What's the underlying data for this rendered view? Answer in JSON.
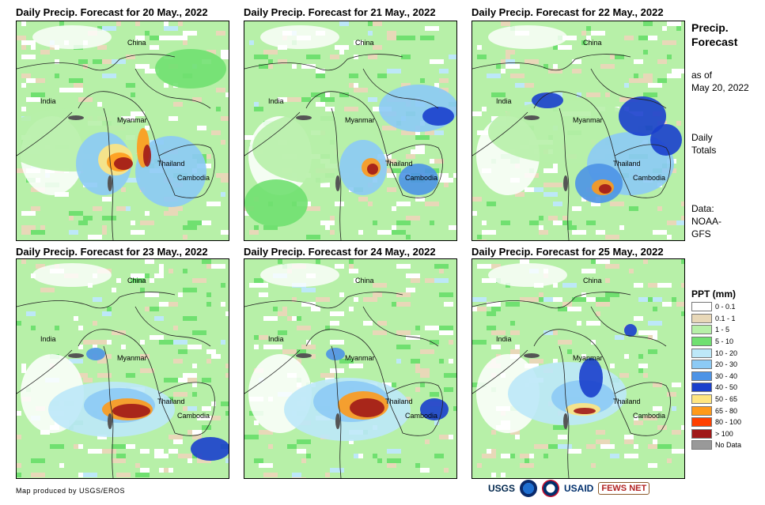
{
  "panels": [
    {
      "title": "Daily Precip. Forecast for 20 May., 2022",
      "labels": {
        "china": "China",
        "india": "India",
        "myanmar": "Myanmar",
        "thailand": "Thailand",
        "cambodia": "Cambodia"
      }
    },
    {
      "title": "Daily Precip. Forecast for 21 May., 2022",
      "labels": {
        "china": "China",
        "india": "India",
        "myanmar": "Myanmar",
        "thailand": "Thailand",
        "cambodia": "Cambodia"
      }
    },
    {
      "title": "Daily Precip. Forecast for 22 May., 2022",
      "labels": {
        "china": "China",
        "india": "India",
        "myanmar": "Myanmar",
        "thailand": "Thailand",
        "cambodia": "Cambodia"
      }
    },
    {
      "title": "Daily Precip. Forecast for 23 May., 2022",
      "labels": {
        "china": "China",
        "india": "India",
        "myanmar": "Myanmar",
        "thailand": "Thailand",
        "cambodia": "Cambodia"
      }
    },
    {
      "title": "Daily Precip. Forecast for 24 May., 2022",
      "labels": {
        "china": "China",
        "india": "India",
        "myanmar": "Myanmar",
        "thailand": "Thailand",
        "cambodia": "Cambodia"
      }
    },
    {
      "title": "Daily Precip. Forecast for 25 May., 2022",
      "labels": {
        "china": "China",
        "india": "India",
        "myanmar": "Myanmar",
        "thailand": "Thailand",
        "cambodia": "Cambodia"
      }
    }
  ],
  "side": {
    "title_line1": "Precip.",
    "title_line2": "Forecast",
    "asof_line1": "as of",
    "asof_line2": "May 20, 2022",
    "daily_line1": "Daily",
    "daily_line2": "Totals",
    "data_line1": "Data:",
    "data_line2": "NOAA-",
    "data_line3": "GFS"
  },
  "legend": {
    "title": "PPT (mm)",
    "items": [
      {
        "label": "0 - 0.1",
        "color": "#ffffff"
      },
      {
        "label": "0.1 - 1",
        "color": "#e8d8b8"
      },
      {
        "label": "1 - 5",
        "color": "#b7f0a8"
      },
      {
        "label": "5 - 10",
        "color": "#70e070"
      },
      {
        "label": "10 - 20",
        "color": "#bde8f8"
      },
      {
        "label": "20 - 30",
        "color": "#8ccaf5"
      },
      {
        "label": "30 - 40",
        "color": "#4d93e6"
      },
      {
        "label": "40 - 50",
        "color": "#1a3fcc"
      },
      {
        "label": "50 - 65",
        "color": "#ffe680"
      },
      {
        "label": "65 - 80",
        "color": "#ff9a1a"
      },
      {
        "label": "80 - 100",
        "color": "#ff4000"
      },
      {
        "label": "> 100",
        "color": "#a01818"
      },
      {
        "label": "No Data",
        "color": "#999999"
      }
    ]
  },
  "credit": "Map produced by USGS/EROS",
  "logos": {
    "usgs": "USGS",
    "usaid": "USAID",
    "fews": "FEWS NET"
  }
}
